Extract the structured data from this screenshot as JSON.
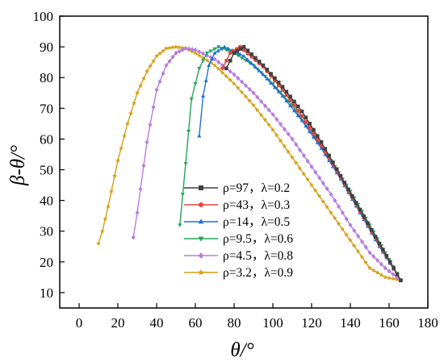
{
  "chart_data": {
    "type": "line",
    "title": "",
    "xlabel": "θ/°",
    "ylabel": "β-θ/°",
    "xlim": [
      -10,
      180
    ],
    "ylim": [
      5,
      100
    ],
    "xticks": [
      0,
      20,
      40,
      60,
      80,
      100,
      120,
      140,
      160,
      180
    ],
    "yticks": [
      10,
      20,
      30,
      40,
      50,
      60,
      70,
      80,
      90,
      100
    ],
    "grid": false,
    "legend_position": "lower-left-center",
    "series": [
      {
        "name": "ρ=97，λ=0.2",
        "color": "#404040",
        "marker": "square",
        "x": [
          76,
          80,
          85,
          95,
          105,
          115,
          125,
          135,
          145,
          155,
          166
        ],
        "y": [
          83,
          88,
          90,
          84,
          77,
          69,
          59,
          48,
          37,
          26,
          14
        ]
      },
      {
        "name": "ρ=43，λ=0.3",
        "color": "#e8423c",
        "marker": "circle",
        "x": [
          74,
          78,
          83,
          95,
          105,
          115,
          125,
          135,
          145,
          155,
          166
        ],
        "y": [
          83,
          88,
          90,
          83.5,
          76,
          67.5,
          58,
          47.5,
          36.5,
          25.5,
          14
        ]
      },
      {
        "name": "ρ=14，λ=0.5",
        "color": "#1e6fd9",
        "marker": "triangle-up",
        "x": [
          62,
          64,
          67,
          70,
          75,
          85,
          95,
          105,
          115,
          125,
          135,
          145,
          155,
          166
        ],
        "y": [
          61,
          74,
          84,
          88,
          90,
          87,
          81,
          74,
          66,
          57,
          47,
          36,
          25,
          14
        ]
      },
      {
        "name": "ρ=9.5，λ=0.6",
        "color": "#22a55a",
        "marker": "triangle-down",
        "x": [
          52,
          55,
          58,
          62,
          66,
          72,
          80,
          90,
          100,
          110,
          120,
          130,
          140,
          150,
          158,
          166
        ],
        "y": [
          32,
          52,
          73,
          83,
          88,
          90,
          88,
          84,
          78,
          71,
          62,
          53,
          43,
          32,
          23,
          14
        ]
      },
      {
        "name": "ρ=4.5，λ=0.8",
        "color": "#b77ddf",
        "marker": "diamond",
        "x": [
          28,
          30,
          35,
          40,
          45,
          50,
          55,
          60,
          70,
          80,
          90,
          100,
          110,
          120,
          130,
          140,
          150,
          158,
          166
        ],
        "y": [
          28,
          36,
          59,
          76,
          84,
          88,
          89.5,
          89,
          86,
          81,
          75,
          68,
          60,
          51,
          42,
          32,
          23,
          18,
          14
        ]
      },
      {
        "name": "ρ=3.2，λ=0.9",
        "color": "#d4a017",
        "marker": "star",
        "x": [
          10,
          12,
          15,
          20,
          25,
          30,
          35,
          40,
          45,
          50,
          55,
          60,
          70,
          80,
          90,
          100,
          110,
          120,
          130,
          140,
          150,
          158,
          166
        ],
        "y": [
          26,
          30,
          38,
          53,
          65,
          75,
          82,
          87,
          89.5,
          90,
          89.5,
          88,
          84,
          78,
          71,
          63,
          54,
          45,
          36,
          27,
          18,
          15,
          14
        ]
      }
    ]
  }
}
